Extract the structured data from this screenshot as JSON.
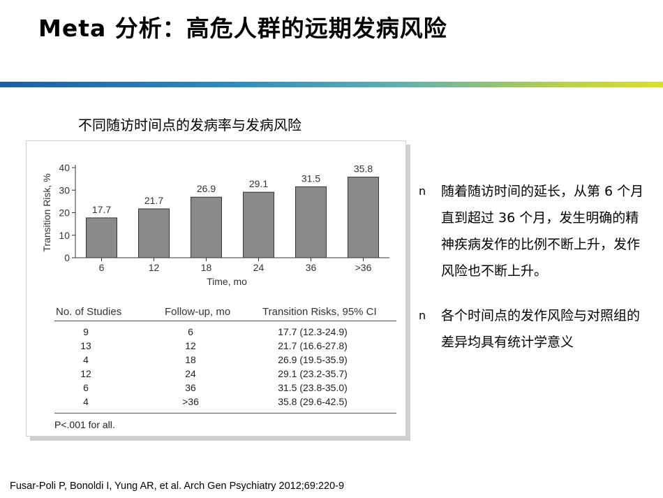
{
  "slide": {
    "title": "Meta 分析：高危人群的远期发病风险",
    "subtitle": "不同随访时间点的发病率与发病风险",
    "citation": "Fusar-Poli P, Bonoldi I, Yung AR, et al. Arch Gen Psychiatry 2012;69:220-9"
  },
  "chart_data": {
    "type": "bar",
    "categories": [
      "6",
      "12",
      "18",
      "24",
      "36",
      ">36"
    ],
    "values": [
      17.7,
      21.7,
      26.9,
      29.1,
      31.5,
      35.8
    ],
    "title": "",
    "xlabel": "Time, mo",
    "ylabel": "Transition Risk, %",
    "ylim": [
      0,
      40
    ],
    "yticks": [
      0,
      10,
      20,
      30,
      40
    ],
    "bar_color": "#8a8a8a"
  },
  "table": {
    "headers": [
      "No. of Studies",
      "Follow-up, mo",
      "Transition Risks, 95% CI"
    ],
    "rows": [
      [
        "9",
        "6",
        "17.7 (12.3-24.9)"
      ],
      [
        "13",
        "12",
        "21.7 (16.6-27.8)"
      ],
      [
        "4",
        "18",
        "26.9 (19.5-35.9)"
      ],
      [
        "12",
        "24",
        "29.1 (23.2-35.7)"
      ],
      [
        "6",
        "36",
        "31.5 (23.8-35.0)"
      ],
      [
        "4",
        ">36",
        "35.8 (29.6-42.5)"
      ]
    ],
    "footnote": "P<.001 for all."
  },
  "bullets": [
    {
      "marker": "n",
      "text": "随着随访时间的延长，从第 6 个月直到超过 36 个月，发生明确的精神疾病发作的比例不断上升，发作风险也不断上升。"
    },
    {
      "marker": "n",
      "text": "各个时间点的发作风险与对照组的差异均具有统计学意义"
    }
  ]
}
